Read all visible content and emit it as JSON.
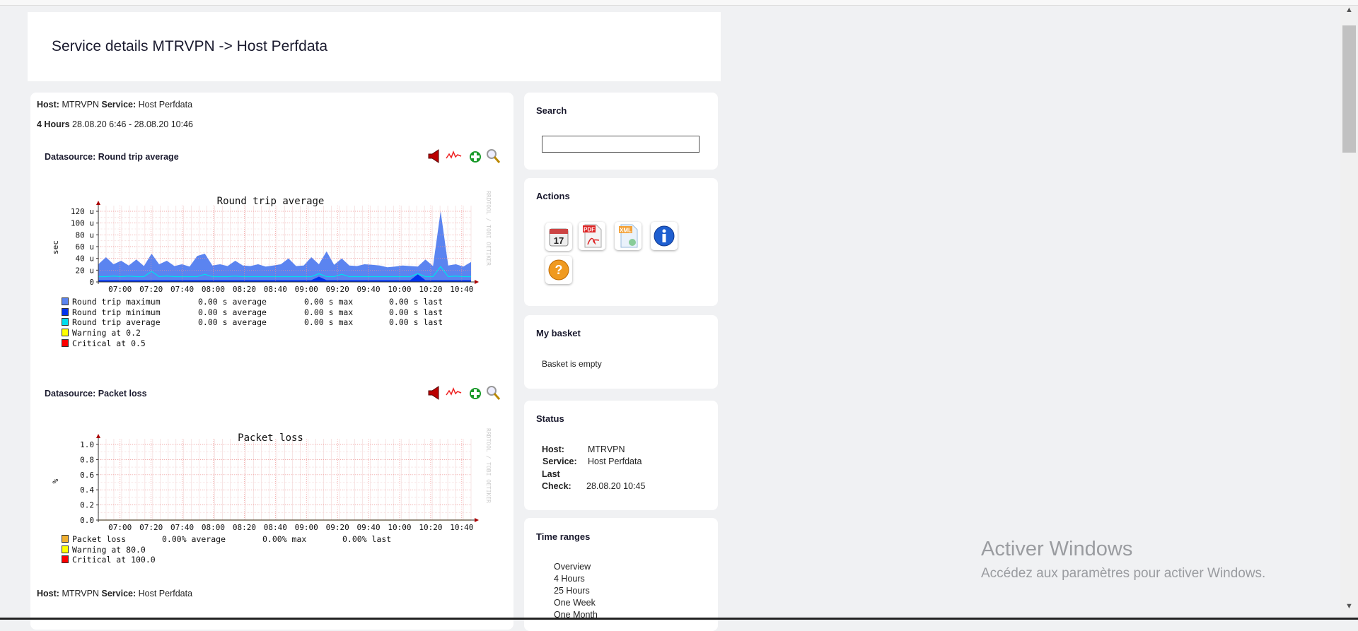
{
  "header": {
    "title": "Service details MTRVPN -> Host Perfdata"
  },
  "main": {
    "host_label": "Host:",
    "host": "MTRVPN",
    "service_label": "Service:",
    "service": "Host Perfdata",
    "range_label": "4 Hours",
    "range": "28.08.20 6:46 - 28.08.20 10:46",
    "second_host_label": "Host:",
    "second_host": "MTRVPN",
    "second_service_label": "Service:",
    "second_service": "Host Perfdata",
    "datasources": [
      {
        "label": "Datasource:",
        "name": "Round trip average"
      },
      {
        "label": "Datasource:",
        "name": "Packet loss"
      }
    ],
    "graph_icons": [
      "speaker-icon",
      "graph-line-icon",
      "add-basket-icon",
      "zoom-icon"
    ],
    "watermark": "RRDTOOL / TOBI OETIKER"
  },
  "chart_data": [
    {
      "type": "area",
      "title": "Round trip average",
      "ylabel": "sec",
      "ylim": [
        0,
        120
      ],
      "yunit": "u",
      "yticks": [
        "0",
        "20 u",
        "40 u",
        "60 u",
        "80 u",
        "100 u",
        "120 u"
      ],
      "xticks": [
        "07:00",
        "07:20",
        "07:40",
        "08:00",
        "08:20",
        "08:40",
        "09:00",
        "09:20",
        "09:40",
        "10:00",
        "10:20",
        "10:40"
      ],
      "x_start": "06:46",
      "x_end": "10:46",
      "grid": true,
      "series": [
        {
          "name": "Round trip maximum",
          "color": "#5b84f0",
          "values": [
            30,
            42,
            30,
            36,
            28,
            38,
            27,
            48,
            30,
            36,
            27,
            30,
            26,
            44,
            48,
            28,
            30,
            27,
            36,
            28,
            27,
            30,
            26,
            28,
            30,
            40,
            27,
            28,
            42,
            30,
            52,
            29,
            40,
            28,
            27,
            30,
            29,
            28,
            25,
            26,
            28,
            27,
            26,
            38,
            27,
            120,
            28,
            30,
            26,
            34
          ]
        },
        {
          "name": "Round trip minimum",
          "color": "#0033ee",
          "values": [
            3,
            3,
            3,
            3,
            3,
            3,
            3,
            3,
            3,
            3,
            3,
            3,
            3,
            3,
            3,
            3,
            3,
            3,
            3,
            3,
            3,
            3,
            3,
            3,
            3,
            3,
            3,
            3,
            3,
            9,
            3,
            3,
            3,
            3,
            3,
            3,
            3,
            3,
            3,
            3,
            3,
            3,
            13,
            3,
            3,
            3,
            3,
            3,
            3,
            3
          ]
        },
        {
          "name": "Round trip average",
          "color": "#00ddee",
          "values": [
            9,
            9,
            10,
            9,
            10,
            9,
            9,
            18,
            9,
            10,
            9,
            9,
            9,
            9,
            13,
            9,
            9,
            9,
            10,
            9,
            9,
            9,
            9,
            9,
            9,
            9,
            9,
            9,
            9,
            14,
            9,
            9,
            13,
            9,
            9,
            9,
            9,
            9,
            9,
            9,
            9,
            9,
            14,
            9,
            9,
            26,
            9,
            10,
            9,
            9
          ]
        }
      ],
      "legend": [
        {
          "name": "Round trip maximum",
          "color": "#5b84f0",
          "average": "0.00 s average",
          "max": "0.00 s max",
          "last": "0.00 s last"
        },
        {
          "name": "Round trip minimum",
          "color": "#0033ee",
          "average": "0.00 s average",
          "max": "0.00 s max",
          "last": "0.00 s last"
        },
        {
          "name": "Round trip average",
          "color": "#00ddee",
          "average": "0.00 s average",
          "max": "0.00 s max",
          "last": "0.00 s last"
        },
        {
          "name": "Warning at 0.2",
          "color": "#ffff00"
        },
        {
          "name": "Critical at 0.5",
          "color": "#ff0000"
        }
      ]
    },
    {
      "type": "area",
      "title": "Packet loss",
      "ylabel": "%",
      "ylim": [
        0,
        1
      ],
      "yticks": [
        "0.0",
        "0.2",
        "0.4",
        "0.6",
        "0.8",
        "1.0"
      ],
      "xticks": [
        "07:00",
        "07:20",
        "07:40",
        "08:00",
        "08:20",
        "08:40",
        "09:00",
        "09:20",
        "09:40",
        "10:00",
        "10:20",
        "10:40"
      ],
      "x_start": "06:46",
      "x_end": "10:46",
      "grid": true,
      "series": [
        {
          "name": "Packet loss",
          "color": "#f0b030",
          "values": [
            0,
            0,
            0,
            0,
            0,
            0,
            0,
            0,
            0,
            0
          ]
        }
      ],
      "legend": [
        {
          "name": "Packet loss",
          "color": "#f0b030",
          "average": "0.00% average",
          "max": "0.00% max",
          "last": "0.00% last"
        },
        {
          "name": "Warning at 80.0",
          "color": "#ffff00"
        },
        {
          "name": "Critical at 100.0",
          "color": "#ff0000"
        }
      ]
    }
  ],
  "sidebar": {
    "search": {
      "title": "Search",
      "value": "",
      "placeholder": ""
    },
    "actions": {
      "title": "Actions",
      "icons": [
        "calendar-icon",
        "pdf-icon",
        "xml-icon",
        "info-icon",
        "help-icon"
      ],
      "calendar_day": "17",
      "pdf_text": "PDF",
      "xml_text": "XML"
    },
    "basket": {
      "title": "My basket",
      "text": "Basket is empty"
    },
    "status": {
      "title": "Status",
      "host_label": "Host:",
      "host": "MTRVPN",
      "service_label": "Service:",
      "service": "Host Perfdata",
      "last_label": "Last",
      "check_label": "Check:",
      "last_check": "28.08.20 10:45"
    },
    "time_ranges": {
      "title": "Time ranges",
      "items": [
        "Overview",
        "4 Hours",
        "25 Hours",
        "One Week",
        "One Month"
      ]
    }
  },
  "watermark": {
    "title": "Activer Windows",
    "subtitle": "Accédez aux paramètres pour activer Windows."
  }
}
